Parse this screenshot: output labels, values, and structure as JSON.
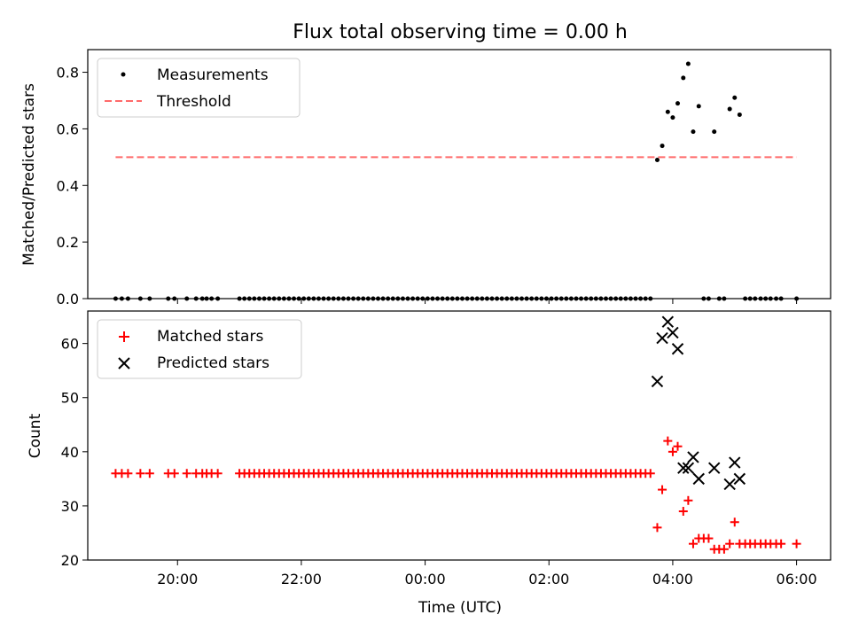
{
  "figure": {
    "title": "Flux total observing time = 0.00 h",
    "xlabel": "Time (UTC)"
  },
  "colors": {
    "measurement": "#000000",
    "threshold": "#ff6a6a",
    "matched": "#ff0000",
    "predicted": "#000000"
  },
  "chart_data": [
    {
      "type": "scatter",
      "title": "Flux total observing time = 0.00 h",
      "ylabel": "Matched/Predicted stars",
      "xlabel": "Time (UTC)",
      "x_ticks_hours": [
        20,
        22,
        24,
        26,
        28,
        30
      ],
      "x_tick_labels": [
        "20:00",
        "22:00",
        "00:00",
        "02:00",
        "04:00",
        "06:00"
      ],
      "xlim_hours": [
        18.55,
        30.55
      ],
      "ylim": [
        0,
        0.88
      ],
      "y_ticks": [
        0.0,
        0.2,
        0.4,
        0.6,
        0.8
      ],
      "y_tick_labels": [
        "0.0",
        "0.2",
        "0.4",
        "0.6",
        "0.8"
      ],
      "legend_position": "top-left",
      "series": [
        {
          "name": "Measurements",
          "marker": "dot",
          "points": [
            [
              19.0,
              0
            ],
            [
              19.1,
              0
            ],
            [
              19.2,
              0
            ],
            [
              19.4,
              0
            ],
            [
              19.55,
              0
            ],
            [
              19.85,
              0
            ],
            [
              19.95,
              0
            ],
            [
              20.15,
              0
            ],
            [
              20.3,
              0
            ],
            [
              20.4,
              0
            ],
            [
              20.47,
              0
            ],
            [
              20.55,
              0
            ],
            [
              20.65,
              0
            ],
            [
              21.0,
              0
            ],
            [
              21.08,
              0
            ],
            [
              21.16,
              0
            ],
            [
              21.24,
              0
            ],
            [
              21.32,
              0
            ],
            [
              21.4,
              0
            ],
            [
              21.48,
              0
            ],
            [
              21.56,
              0
            ],
            [
              21.64,
              0
            ],
            [
              21.72,
              0
            ],
            [
              21.8,
              0
            ],
            [
              21.88,
              0
            ],
            [
              21.96,
              0
            ],
            [
              22.04,
              0
            ],
            [
              22.12,
              0
            ],
            [
              22.2,
              0
            ],
            [
              22.28,
              0
            ],
            [
              22.36,
              0
            ],
            [
              22.44,
              0
            ],
            [
              22.52,
              0
            ],
            [
              22.6,
              0
            ],
            [
              22.68,
              0
            ],
            [
              22.76,
              0
            ],
            [
              22.84,
              0
            ],
            [
              22.92,
              0
            ],
            [
              23.0,
              0
            ],
            [
              23.08,
              0
            ],
            [
              23.16,
              0
            ],
            [
              23.24,
              0
            ],
            [
              23.32,
              0
            ],
            [
              23.4,
              0
            ],
            [
              23.48,
              0
            ],
            [
              23.56,
              0
            ],
            [
              23.64,
              0
            ],
            [
              23.72,
              0
            ],
            [
              23.8,
              0
            ],
            [
              23.88,
              0
            ],
            [
              23.96,
              0
            ],
            [
              24.04,
              0
            ],
            [
              24.12,
              0
            ],
            [
              24.2,
              0
            ],
            [
              24.28,
              0
            ],
            [
              24.36,
              0
            ],
            [
              24.44,
              0
            ],
            [
              24.52,
              0
            ],
            [
              24.6,
              0
            ],
            [
              24.68,
              0
            ],
            [
              24.76,
              0
            ],
            [
              24.84,
              0
            ],
            [
              24.92,
              0
            ],
            [
              25.0,
              0
            ],
            [
              25.08,
              0
            ],
            [
              25.16,
              0
            ],
            [
              25.24,
              0
            ],
            [
              25.32,
              0
            ],
            [
              25.4,
              0
            ],
            [
              25.48,
              0
            ],
            [
              25.56,
              0
            ],
            [
              25.64,
              0
            ],
            [
              25.72,
              0
            ],
            [
              25.8,
              0
            ],
            [
              25.88,
              0
            ],
            [
              25.96,
              0
            ],
            [
              26.04,
              0
            ],
            [
              26.12,
              0
            ],
            [
              26.2,
              0
            ],
            [
              26.28,
              0
            ],
            [
              26.36,
              0
            ],
            [
              26.44,
              0
            ],
            [
              26.52,
              0
            ],
            [
              26.6,
              0
            ],
            [
              26.68,
              0
            ],
            [
              26.76,
              0
            ],
            [
              26.84,
              0
            ],
            [
              26.92,
              0
            ],
            [
              27.0,
              0
            ],
            [
              27.08,
              0
            ],
            [
              27.16,
              0
            ],
            [
              27.24,
              0
            ],
            [
              27.32,
              0
            ],
            [
              27.4,
              0
            ],
            [
              27.48,
              0
            ],
            [
              27.56,
              0
            ],
            [
              27.64,
              0
            ],
            [
              27.75,
              0.49
            ],
            [
              27.83,
              0.54
            ],
            [
              27.92,
              0.66
            ],
            [
              28.0,
              0.64
            ],
            [
              28.08,
              0.69
            ],
            [
              28.17,
              0.78
            ],
            [
              28.25,
              0.83
            ],
            [
              28.33,
              0.59
            ],
            [
              28.42,
              0.68
            ],
            [
              28.5,
              0
            ],
            [
              28.58,
              0
            ],
            [
              28.67,
              0.59
            ],
            [
              28.75,
              0
            ],
            [
              28.83,
              0
            ],
            [
              28.92,
              0.67
            ],
            [
              29.0,
              0.71
            ],
            [
              29.08,
              0.65
            ],
            [
              29.17,
              0
            ],
            [
              29.25,
              0
            ],
            [
              29.33,
              0
            ],
            [
              29.42,
              0
            ],
            [
              29.5,
              0
            ],
            [
              29.58,
              0
            ],
            [
              29.67,
              0
            ],
            [
              29.75,
              0
            ],
            [
              30.0,
              0
            ]
          ]
        },
        {
          "name": "Threshold",
          "type": "line",
          "style": "dashed",
          "x": [
            19.0,
            30.0
          ],
          "y": [
            0.5,
            0.5
          ]
        }
      ]
    },
    {
      "type": "scatter",
      "ylabel": "Count",
      "xlabel": "Time (UTC)",
      "x_ticks_hours": [
        20,
        22,
        24,
        26,
        28,
        30
      ],
      "x_tick_labels": [
        "20:00",
        "22:00",
        "00:00",
        "02:00",
        "04:00",
        "06:00"
      ],
      "xlim_hours": [
        18.55,
        30.55
      ],
      "ylim": [
        20,
        66
      ],
      "y_ticks": [
        20,
        30,
        40,
        50,
        60
      ],
      "y_tick_labels": [
        "20",
        "30",
        "40",
        "50",
        "60"
      ],
      "legend_position": "top-left",
      "series": [
        {
          "name": "Matched stars",
          "marker": "plus",
          "points": [
            [
              19.0,
              36
            ],
            [
              19.1,
              36
            ],
            [
              19.2,
              36
            ],
            [
              19.4,
              36
            ],
            [
              19.55,
              36
            ],
            [
              19.85,
              36
            ],
            [
              19.95,
              36
            ],
            [
              20.15,
              36
            ],
            [
              20.3,
              36
            ],
            [
              20.4,
              36
            ],
            [
              20.47,
              36
            ],
            [
              20.55,
              36
            ],
            [
              20.65,
              36
            ],
            [
              21.0,
              36
            ],
            [
              21.08,
              36
            ],
            [
              21.16,
              36
            ],
            [
              21.24,
              36
            ],
            [
              21.32,
              36
            ],
            [
              21.4,
              36
            ],
            [
              21.48,
              36
            ],
            [
              21.56,
              36
            ],
            [
              21.64,
              36
            ],
            [
              21.72,
              36
            ],
            [
              21.8,
              36
            ],
            [
              21.88,
              36
            ],
            [
              21.96,
              36
            ],
            [
              22.04,
              36
            ],
            [
              22.12,
              36
            ],
            [
              22.2,
              36
            ],
            [
              22.28,
              36
            ],
            [
              22.36,
              36
            ],
            [
              22.44,
              36
            ],
            [
              22.52,
              36
            ],
            [
              22.6,
              36
            ],
            [
              22.68,
              36
            ],
            [
              22.76,
              36
            ],
            [
              22.84,
              36
            ],
            [
              22.92,
              36
            ],
            [
              23.0,
              36
            ],
            [
              23.08,
              36
            ],
            [
              23.16,
              36
            ],
            [
              23.24,
              36
            ],
            [
              23.32,
              36
            ],
            [
              23.4,
              36
            ],
            [
              23.48,
              36
            ],
            [
              23.56,
              36
            ],
            [
              23.64,
              36
            ],
            [
              23.72,
              36
            ],
            [
              23.8,
              36
            ],
            [
              23.88,
              36
            ],
            [
              23.96,
              36
            ],
            [
              24.04,
              36
            ],
            [
              24.12,
              36
            ],
            [
              24.2,
              36
            ],
            [
              24.28,
              36
            ],
            [
              24.36,
              36
            ],
            [
              24.44,
              36
            ],
            [
              24.52,
              36
            ],
            [
              24.6,
              36
            ],
            [
              24.68,
              36
            ],
            [
              24.76,
              36
            ],
            [
              24.84,
              36
            ],
            [
              24.92,
              36
            ],
            [
              25.0,
              36
            ],
            [
              25.08,
              36
            ],
            [
              25.16,
              36
            ],
            [
              25.24,
              36
            ],
            [
              25.32,
              36
            ],
            [
              25.4,
              36
            ],
            [
              25.48,
              36
            ],
            [
              25.56,
              36
            ],
            [
              25.64,
              36
            ],
            [
              25.72,
              36
            ],
            [
              25.8,
              36
            ],
            [
              25.88,
              36
            ],
            [
              25.96,
              36
            ],
            [
              26.04,
              36
            ],
            [
              26.12,
              36
            ],
            [
              26.2,
              36
            ],
            [
              26.28,
              36
            ],
            [
              26.36,
              36
            ],
            [
              26.44,
              36
            ],
            [
              26.52,
              36
            ],
            [
              26.6,
              36
            ],
            [
              26.68,
              36
            ],
            [
              26.76,
              36
            ],
            [
              26.84,
              36
            ],
            [
              26.92,
              36
            ],
            [
              27.0,
              36
            ],
            [
              27.08,
              36
            ],
            [
              27.16,
              36
            ],
            [
              27.24,
              36
            ],
            [
              27.32,
              36
            ],
            [
              27.4,
              36
            ],
            [
              27.48,
              36
            ],
            [
              27.56,
              36
            ],
            [
              27.64,
              36
            ],
            [
              27.75,
              26
            ],
            [
              27.83,
              33
            ],
            [
              27.92,
              42
            ],
            [
              28.0,
              40
            ],
            [
              28.08,
              41
            ],
            [
              28.17,
              29
            ],
            [
              28.25,
              31
            ],
            [
              28.33,
              23
            ],
            [
              28.42,
              24
            ],
            [
              28.5,
              24
            ],
            [
              28.58,
              24
            ],
            [
              28.67,
              22
            ],
            [
              28.75,
              22
            ],
            [
              28.83,
              22
            ],
            [
              28.92,
              23
            ],
            [
              29.0,
              27
            ],
            [
              29.08,
              23
            ],
            [
              29.17,
              23
            ],
            [
              29.25,
              23
            ],
            [
              29.33,
              23
            ],
            [
              29.42,
              23
            ],
            [
              29.5,
              23
            ],
            [
              29.58,
              23
            ],
            [
              29.67,
              23
            ],
            [
              29.75,
              23
            ],
            [
              30.0,
              23
            ]
          ]
        },
        {
          "name": "Predicted stars",
          "marker": "x",
          "points": [
            [
              27.75,
              53
            ],
            [
              27.83,
              61
            ],
            [
              27.92,
              64
            ],
            [
              28.0,
              62
            ],
            [
              28.08,
              59
            ],
            [
              28.17,
              37
            ],
            [
              28.25,
              37
            ],
            [
              28.33,
              39
            ],
            [
              28.42,
              35
            ],
            [
              28.67,
              37
            ],
            [
              28.92,
              34
            ],
            [
              29.0,
              38
            ],
            [
              29.08,
              35
            ]
          ]
        }
      ]
    }
  ]
}
